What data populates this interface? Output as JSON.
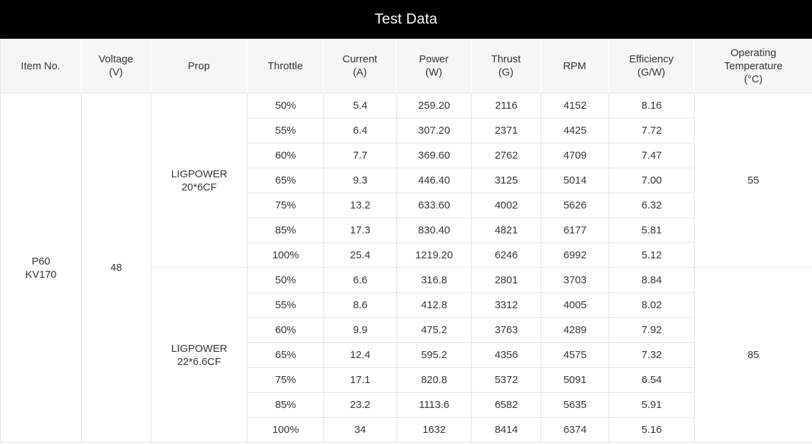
{
  "title": "Test Data",
  "chart_data": {
    "type": "table",
    "title": "Test Data",
    "columns": [
      "Item No.",
      "Voltage\n(V)",
      "Prop",
      "Throttle",
      "Current\n(A)",
      "Power\n(W)",
      "Thrust\n(G)",
      "RPM",
      "Efficiency\n(G/W)",
      "Operating\nTemperature\n(°C)"
    ],
    "item_no": "P60\nKV170",
    "voltage": "48",
    "groups": [
      {
        "prop": "LIGPOWER\n20*6CF",
        "operating_temperature": "55",
        "rows": [
          [
            "50%",
            "5.4",
            "259.20",
            "2116",
            "4152",
            "8.16"
          ],
          [
            "55%",
            "6.4",
            "307.20",
            "2371",
            "4425",
            "7.72"
          ],
          [
            "60%",
            "7.7",
            "369.60",
            "2762",
            "4709",
            "7.47"
          ],
          [
            "65%",
            "9.3",
            "446.40",
            "3125",
            "5014",
            "7.00"
          ],
          [
            "75%",
            "13.2",
            "633.60",
            "4002",
            "5626",
            "6.32"
          ],
          [
            "85%",
            "17.3",
            "830.40",
            "4821",
            "6177",
            "5.81"
          ],
          [
            "100%",
            "25.4",
            "1219.20",
            "6246",
            "6992",
            "5.12"
          ]
        ]
      },
      {
        "prop": "LIGPOWER\n22*6.6CF",
        "operating_temperature": "85",
        "rows": [
          [
            "50%",
            "6.6",
            "316.8",
            "2801",
            "3703",
            "8.84"
          ],
          [
            "55%",
            "8.6",
            "412.8",
            "3312",
            "4005",
            "8.02"
          ],
          [
            "60%",
            "9.9",
            "475.2",
            "3763",
            "4289",
            "7.92"
          ],
          [
            "65%",
            "12.4",
            "595.2",
            "4356",
            "4575",
            "7.32"
          ],
          [
            "75%",
            "17.1",
            "820.8",
            "5372",
            "5091",
            "6.54"
          ],
          [
            "85%",
            "23.2",
            "1113.6",
            "6582",
            "5635",
            "5.91"
          ],
          [
            "100%",
            "34",
            "1632",
            "8414",
            "6374",
            "5.16"
          ]
        ]
      }
    ]
  },
  "colors": {
    "title_bar_bg": "#000000",
    "title_text": "#ffffff",
    "header_bg": "#f6f6f7",
    "cell_bg": "#ffffff",
    "border": "#e4e4e4",
    "text": "#333333"
  }
}
